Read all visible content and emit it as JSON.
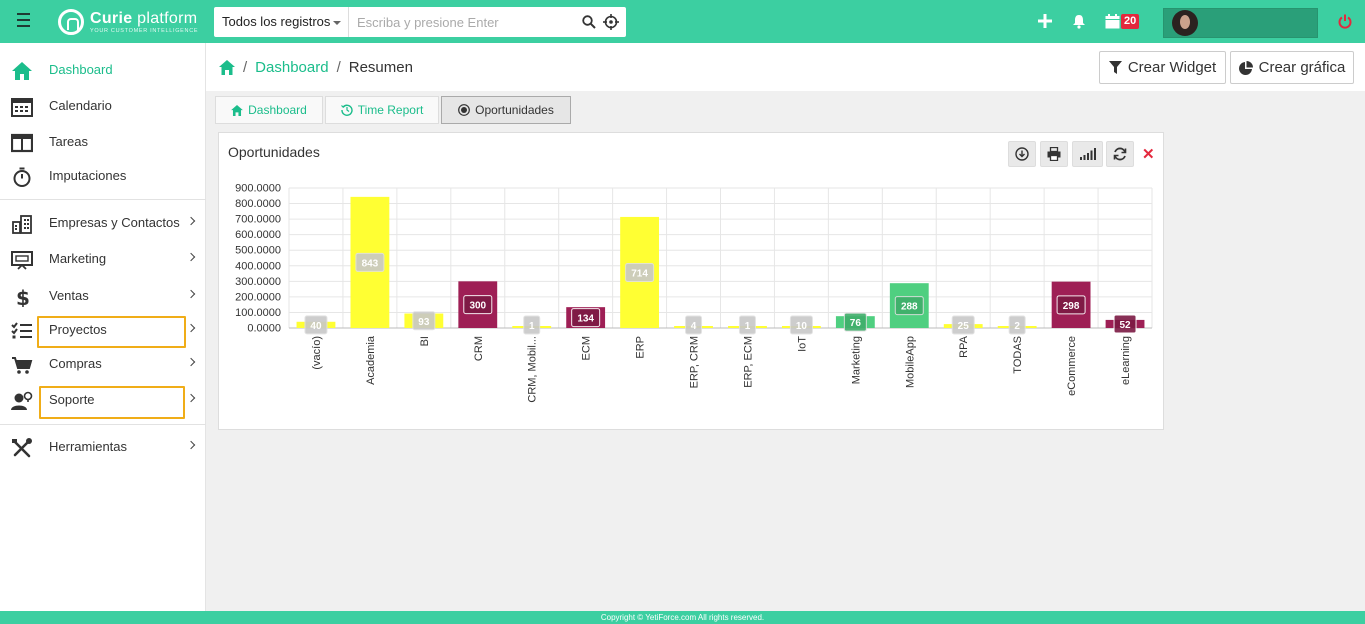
{
  "topbar": {
    "logo_title_bold": "Curie",
    "logo_title_rest": " platform",
    "logo_subtitle": "YOUR CUSTOMER INTELLIGENCE",
    "search_module": "Todos los registros",
    "search_placeholder": "Escriba y presione Enter",
    "calendar_badge": "20"
  },
  "sidebar": {
    "items": [
      {
        "label": "Dashboard",
        "icon": "home-icon",
        "active": true
      },
      {
        "label": "Calendario",
        "icon": "calendar-icon"
      },
      {
        "label": "Tareas",
        "icon": "tasks-icon"
      },
      {
        "label": "Imputaciones",
        "icon": "stopwatch-icon"
      },
      {
        "label": "Empresas y Contactos",
        "icon": "buildings-icon"
      },
      {
        "label": "Marketing",
        "icon": "presentation-icon"
      },
      {
        "label": "Ventas",
        "icon": "dollar-icon"
      },
      {
        "label": "Proyectos",
        "icon": "list-check-icon"
      },
      {
        "label": "Compras",
        "icon": "cart-icon"
      },
      {
        "label": "Soporte",
        "icon": "support-user-icon"
      },
      {
        "label": "Herramientas",
        "icon": "tools-icon"
      }
    ]
  },
  "breadcrumb": {
    "link": "Dashboard",
    "current": "Resumen"
  },
  "header_buttons": {
    "create_widget": "Crear Widget",
    "create_chart": "Crear gráfica"
  },
  "tabs": [
    {
      "label": "Dashboard"
    },
    {
      "label": "Time Report"
    },
    {
      "label": "Oportunidades",
      "active": true
    }
  ],
  "widget": {
    "title": "Oportunidades"
  },
  "chart_data": {
    "type": "bar",
    "categories": [
      "(vacío)",
      "Academia",
      "BI",
      "CRM",
      "CRM, Mobil...",
      "ECM",
      "ERP",
      "ERP, CRM",
      "ERP, ECM",
      "IoT",
      "Marketing",
      "MobileApp",
      "RPA",
      "TODAS",
      "eCommerce",
      "eLearning"
    ],
    "values": [
      40,
      843,
      93,
      300,
      1,
      134,
      714,
      4,
      1,
      10,
      76,
      288,
      25,
      2,
      298,
      52
    ],
    "data_labels": [
      "40",
      "843",
      "93",
      "300",
      "1",
      "134",
      "714",
      "4",
      "1",
      "10",
      "76",
      "288",
      "25",
      "2",
      "298",
      "52"
    ],
    "colors": [
      "#ffff33",
      "#ffff33",
      "#ffff33",
      "#9e1f55",
      "#ffff33",
      "#9e1f55",
      "#ffff33",
      "#ffff33",
      "#ffff33",
      "#ffff33",
      "#4fcf80",
      "#4fcf80",
      "#ffff33",
      "#ffff33",
      "#9e1f55",
      "#9e1f55"
    ],
    "y_ticks": [
      "0.0000",
      "100.0000",
      "200.0000",
      "300.0000",
      "400.0000",
      "500.0000",
      "600.0000",
      "700.0000",
      "800.0000",
      "900.0000"
    ],
    "ylim": [
      0,
      900
    ],
    "grid": true
  },
  "footer": {
    "text": "Copyright © YetiForce.com All rights reserved."
  }
}
